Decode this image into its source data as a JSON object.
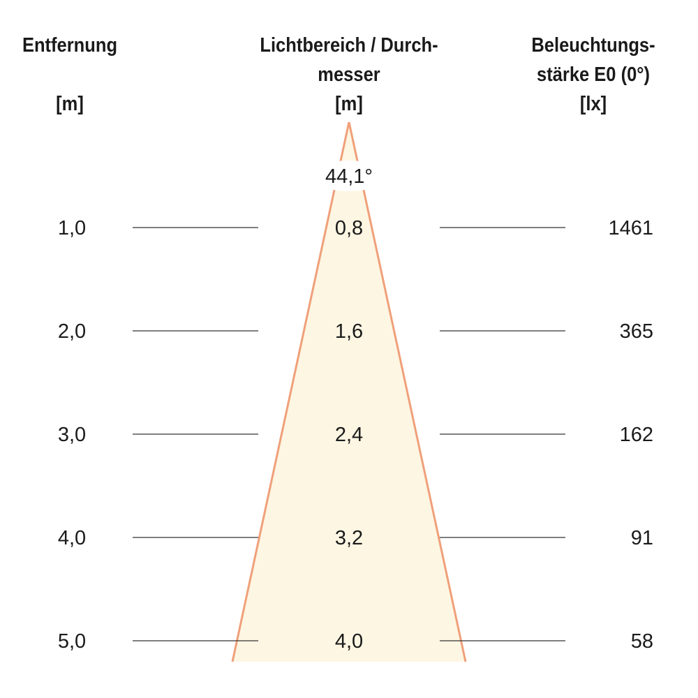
{
  "headers": {
    "distance": {
      "line1": "Entfernung",
      "unit": "[m]"
    },
    "diameter": {
      "line1": "Lichtbereich / Durch-",
      "line2": "messer",
      "unit": "[m]"
    },
    "illuminance": {
      "line1": "Beleuchtungs-",
      "line2": "stärke E0 (0°)",
      "unit": "[lx]"
    }
  },
  "beam_angle": "44,1°",
  "rows": [
    {
      "distance": "1,0",
      "diameter": "0,8",
      "illuminance": "1461"
    },
    {
      "distance": "2,0",
      "diameter": "1,6",
      "illuminance": "365"
    },
    {
      "distance": "3,0",
      "diameter": "2,4",
      "illuminance": "162"
    },
    {
      "distance": "4,0",
      "diameter": "3,2",
      "illuminance": "91"
    },
    {
      "distance": "5,0",
      "diameter": "4,0",
      "illuminance": "58"
    }
  ],
  "colors": {
    "cone_fill": "#fdf6e3",
    "cone_stroke": "#f0a07a",
    "rule_line": "#333333"
  }
}
